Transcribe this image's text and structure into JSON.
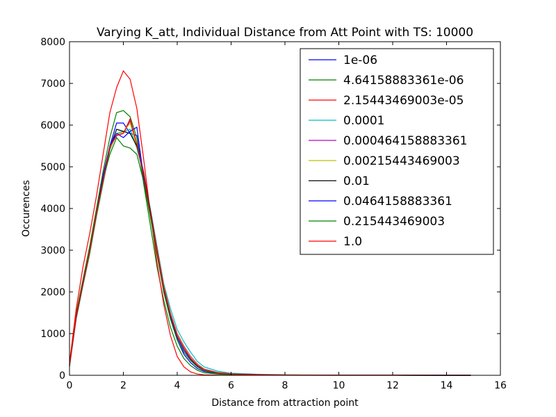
{
  "chart_data": {
    "type": "line",
    "title": "Varying K_att, Individual Distance from Att Point with TS: 10000",
    "xlabel": "Distance from attraction point",
    "ylabel": "Occurences",
    "xlim": [
      0,
      16
    ],
    "ylim": [
      0,
      8000
    ],
    "xticks": [
      "0",
      "2",
      "4",
      "6",
      "8",
      "10",
      "12",
      "14",
      "16"
    ],
    "yticks": [
      "0",
      "1000",
      "2000",
      "3000",
      "4000",
      "5000",
      "6000",
      "7000",
      "8000"
    ],
    "grid": false,
    "legend_position": "top-right",
    "x": [
      0.0,
      0.25,
      0.5,
      0.75,
      1.0,
      1.25,
      1.5,
      1.75,
      2.0,
      2.25,
      2.5,
      2.75,
      3.0,
      3.25,
      3.5,
      3.75,
      4.0,
      4.25,
      4.5,
      4.75,
      5.0,
      5.5,
      6.0,
      7.0,
      8.0,
      10.0,
      12.0,
      14.0,
      14.9
    ],
    "series": [
      {
        "name": "1e-06",
        "color": "#0000ff",
        "values": [
          250,
          1400,
          2200,
          3000,
          3900,
          4800,
          5500,
          6050,
          6050,
          5800,
          5750,
          4700,
          3900,
          2900,
          2000,
          1350,
          850,
          500,
          300,
          160,
          90,
          40,
          20,
          10,
          5,
          2,
          1,
          0,
          0
        ]
      },
      {
        "name": "4.64158883361e-06",
        "color": "#008000",
        "values": [
          250,
          1500,
          2300,
          3100,
          4000,
          4900,
          5700,
          6300,
          6350,
          6200,
          5700,
          4600,
          3600,
          2600,
          1800,
          1150,
          700,
          400,
          230,
          120,
          60,
          30,
          15,
          8,
          4,
          2,
          1,
          0,
          0
        ]
      },
      {
        "name": "2.15443469003e-05",
        "color": "#ff0000",
        "values": [
          300,
          1600,
          2600,
          3400,
          4300,
          5300,
          6300,
          6900,
          7300,
          7100,
          6400,
          5200,
          3900,
          2700,
          1700,
          950,
          450,
          200,
          80,
          30,
          10,
          5,
          3,
          2,
          1,
          0,
          0,
          0,
          0
        ]
      },
      {
        "name": "0.0001",
        "color": "#00bfbf",
        "values": [
          200,
          1350,
          2150,
          2900,
          3800,
          4600,
          5400,
          5800,
          5850,
          5900,
          5450,
          4800,
          4000,
          3100,
          2200,
          1600,
          1100,
          800,
          550,
          330,
          200,
          100,
          50,
          25,
          12,
          5,
          2,
          1,
          0
        ]
      },
      {
        "name": "0.000464158883361",
        "color": "#bf00bf",
        "values": [
          220,
          1380,
          2180,
          2950,
          3850,
          4650,
          5450,
          5750,
          5800,
          6100,
          5500,
          4900,
          3950,
          3050,
          2150,
          1500,
          1000,
          700,
          450,
          270,
          150,
          70,
          35,
          18,
          9,
          4,
          2,
          1,
          0
        ]
      },
      {
        "name": "0.00215443469003",
        "color": "#bfbf00",
        "values": [
          210,
          1370,
          2170,
          2930,
          3830,
          4630,
          5430,
          5780,
          5830,
          6050,
          5480,
          4870,
          3930,
          3030,
          2130,
          1480,
          980,
          680,
          430,
          260,
          140,
          65,
          32,
          16,
          8,
          3,
          1,
          0,
          0
        ]
      },
      {
        "name": "0.01",
        "color": "#000000",
        "values": [
          230,
          1390,
          2190,
          2960,
          3860,
          4660,
          5460,
          5900,
          5850,
          5800,
          5500,
          4850,
          3950,
          3000,
          2100,
          1450,
          950,
          650,
          400,
          240,
          130,
          60,
          30,
          15,
          7,
          3,
          1,
          0,
          0
        ]
      },
      {
        "name": "0.0464158883361",
        "color": "#0000ff",
        "values": [
          240,
          1410,
          2210,
          2970,
          3870,
          4700,
          5500,
          5800,
          5700,
          5850,
          5950,
          4750,
          3850,
          2950,
          2050,
          1400,
          900,
          600,
          380,
          220,
          120,
          55,
          28,
          14,
          6,
          3,
          1,
          0,
          0
        ]
      },
      {
        "name": "0.215443469003",
        "color": "#008000",
        "values": [
          230,
          1420,
          2220,
          2980,
          3880,
          4700,
          5300,
          5700,
          5500,
          5450,
          5300,
          4650,
          3800,
          2900,
          2000,
          1350,
          850,
          550,
          350,
          200,
          110,
          50,
          25,
          12,
          6,
          2,
          1,
          0,
          0
        ]
      },
      {
        "name": "1.0",
        "color": "#ff0000",
        "values": [
          240,
          1430,
          2230,
          2990,
          3890,
          4680,
          5480,
          5750,
          5800,
          6150,
          5550,
          4800,
          3900,
          3000,
          2100,
          1450,
          950,
          650,
          400,
          240,
          130,
          60,
          30,
          15,
          7,
          3,
          1,
          0,
          0
        ]
      }
    ]
  }
}
